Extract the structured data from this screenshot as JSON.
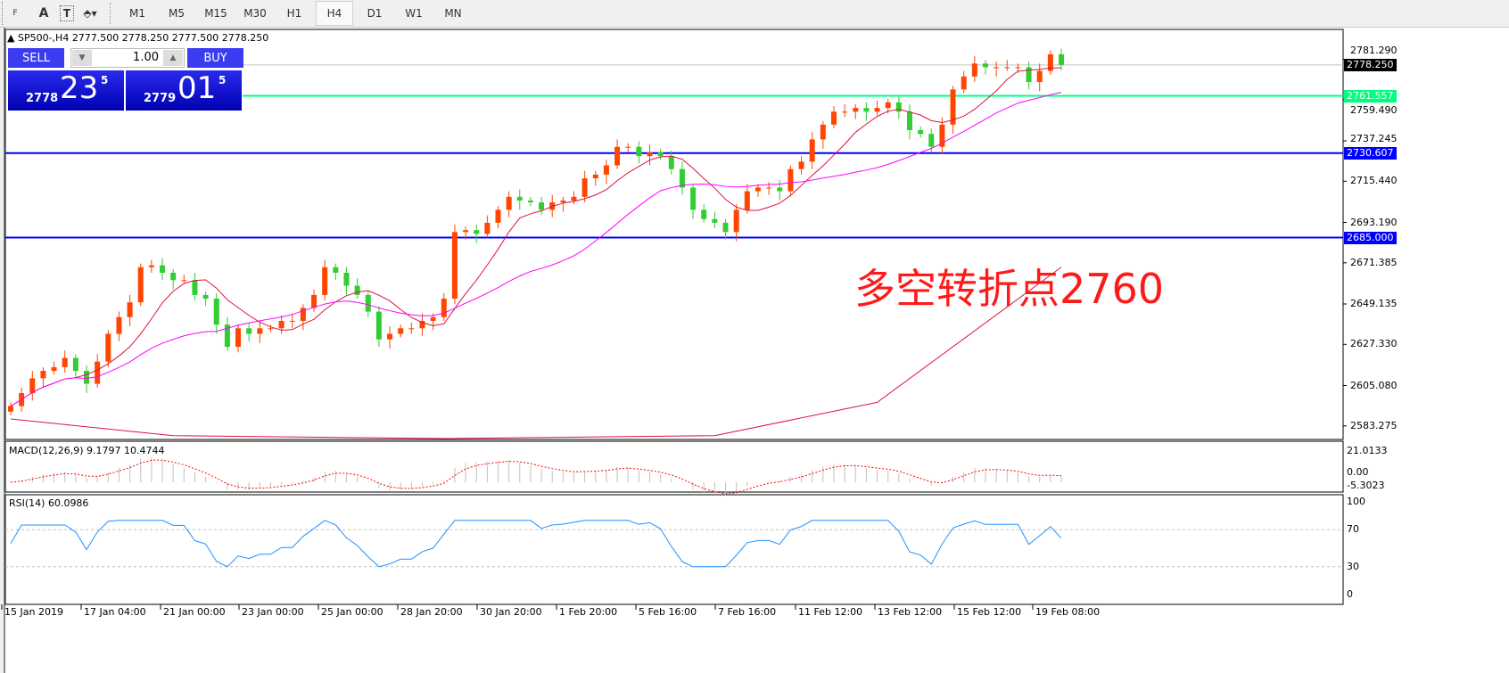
{
  "toolbar": {
    "tools": [
      {
        "name": "fibo-fan-icon",
        "label": "F"
      },
      {
        "name": "text-icon",
        "label": "A"
      },
      {
        "name": "text-label-icon",
        "label": "T"
      },
      {
        "name": "arrows-icon",
        "label": "⬘▾"
      }
    ],
    "timeframes": [
      "M1",
      "M5",
      "M15",
      "M30",
      "H1",
      "H4",
      "D1",
      "W1",
      "MN"
    ],
    "active_timeframe": "H4"
  },
  "chart": {
    "header": "SP500-,H4  2777.500 2778.250 2777.500 2778.250",
    "trade_panel": {
      "sell_label": "SELL",
      "buy_label": "BUY",
      "lot": "1.00",
      "sell_small": "2778",
      "sell_big": "23",
      "sell_sup": "5",
      "buy_small": "2779",
      "buy_big": "01",
      "buy_sup": "5"
    },
    "annotation": "多空转折点2760",
    "price_axis": [
      "2781.290",
      "2759.490",
      "2737.245",
      "2715.440",
      "2693.190",
      "2671.385",
      "2649.135",
      "2627.330",
      "2605.080",
      "2583.275"
    ],
    "hlines": [
      {
        "value": "2778.250",
        "color": "#000000",
        "line": "#c0c0c0"
      },
      {
        "value": "2761.557",
        "color": "#00ff7f",
        "line": "#00ff7f"
      },
      {
        "value": "2730.607",
        "color": "#0000ff",
        "line": "#0000ff"
      },
      {
        "value": "2685.000",
        "color": "#0000ff",
        "line": "#0000ff"
      }
    ],
    "time_axis": [
      "15 Jan 2019",
      "17 Jan 04:00",
      "21 Jan 00:00",
      "23 Jan 00:00",
      "25 Jan 00:00",
      "28 Jan 20:00",
      "30 Jan 20:00",
      "1 Feb 20:00",
      "5 Feb 16:00",
      "7 Feb 16:00",
      "11 Feb 12:00",
      "13 Feb 12:00",
      "15 Feb 12:00",
      "19 Feb 08:00"
    ],
    "colors": {
      "bull": "#ff4500",
      "bear": "#32cd32",
      "ma_fast": "#dc143c",
      "ma_mid": "#ff00ff",
      "ma_slow": "#dc143c",
      "rsi": "#1e90ff",
      "macd_signal": "#ff0000",
      "macd_hist": "#c0c0c0"
    },
    "closes": [
      2594,
      2601,
      2609,
      2613,
      2615,
      2620,
      2613,
      2606,
      2618,
      2633,
      2642,
      2650,
      2669,
      2670,
      2666,
      2662,
      2662,
      2654,
      2652,
      2638,
      2626,
      2636,
      2633,
      2636,
      2636,
      2640,
      2640,
      2647,
      2654,
      2669,
      2666,
      2659,
      2654,
      2645,
      2630,
      2633,
      2636,
      2636,
      2640,
      2642,
      2652,
      2688,
      2689,
      2687,
      2693,
      2700,
      2707,
      2705,
      2704,
      2700,
      2704,
      2705,
      2707,
      2717,
      2719,
      2724,
      2734,
      2734,
      2729,
      2731,
      2729,
      2722,
      2712,
      2700,
      2695,
      2693,
      2688,
      2700,
      2710,
      2712,
      2712,
      2710,
      2722,
      2726,
      2738,
      2746,
      2753,
      2753,
      2755,
      2753,
      2755,
      2758,
      2753,
      2743,
      2741,
      2734,
      2746,
      2765,
      2772,
      2779,
      2777,
      2777,
      2777,
      2777,
      2769,
      2775,
      2784,
      2778.25
    ],
    "ma_slow": [
      [
        0,
        2587
      ],
      [
        15,
        2578
      ],
      [
        40,
        2570
      ],
      [
        65,
        2578
      ],
      [
        80,
        2596
      ],
      [
        97,
        2669
      ]
    ]
  },
  "macd": {
    "label": "MACD(12,26,9) 9.1797 10.4744",
    "axis": [
      "21.0133",
      "0.00",
      "-5.3023"
    ]
  },
  "rsi": {
    "label": "RSI(14) 60.0986",
    "axis": [
      "100",
      "70",
      "30",
      "0"
    ]
  }
}
